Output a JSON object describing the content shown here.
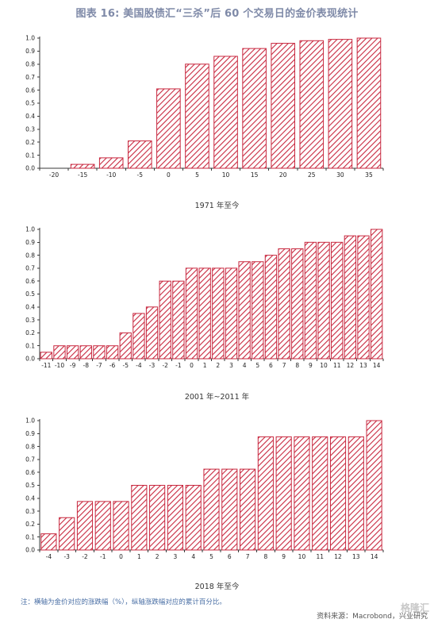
{
  "title": "图表 16: 美国股债汇“三杀”后 60 个交易日的金价表现统计",
  "note": "注：横轴为金价对应的涨跌幅（%），纵轴涨跌幅对应的累计百分比。",
  "source": "资料来源：Macrobond，兴业研究",
  "watermark": "格隆汇",
  "colors": {
    "bar": "#c8283f",
    "axis": "#3a3a3a"
  },
  "chart_data": [
    {
      "type": "bar",
      "caption": "1971 年至今",
      "ylim": [
        0,
        1.0
      ],
      "yticks": [
        "0.0",
        "0.1",
        "0.2",
        "0.3",
        "0.4",
        "0.5",
        "0.6",
        "0.7",
        "0.8",
        "0.9",
        "1.0"
      ],
      "categories": [
        "-20",
        "-15",
        "-10",
        "-5",
        "0",
        "5",
        "10",
        "15",
        "20",
        "25",
        "30",
        "35"
      ],
      "values": [
        0.0,
        0.03,
        0.08,
        0.21,
        0.61,
        0.8,
        0.86,
        0.92,
        0.96,
        0.98,
        0.99,
        1.0
      ]
    },
    {
      "type": "bar",
      "caption": "2001 年~2011 年",
      "ylim": [
        0,
        1.0
      ],
      "yticks": [
        "0.0",
        "0.1",
        "0.2",
        "0.3",
        "0.4",
        "0.5",
        "0.6",
        "0.7",
        "0.8",
        "0.9",
        "1.0"
      ],
      "categories": [
        "-11",
        "-10",
        "-9",
        "-8",
        "-7",
        "-6",
        "-5",
        "-4",
        "-3",
        "-2",
        "-1",
        "0",
        "1",
        "2",
        "3",
        "4",
        "5",
        "6",
        "7",
        "8",
        "9",
        "10",
        "11",
        "12",
        "13",
        "14"
      ],
      "values": [
        0.05,
        0.1,
        0.1,
        0.1,
        0.1,
        0.1,
        0.2,
        0.35,
        0.4,
        0.6,
        0.6,
        0.7,
        0.7,
        0.7,
        0.7,
        0.75,
        0.75,
        0.8,
        0.85,
        0.85,
        0.9,
        0.9,
        0.9,
        0.95,
        0.95,
        1.0
      ]
    },
    {
      "type": "bar",
      "caption": "2018 年至今",
      "ylim": [
        0,
        1.0
      ],
      "yticks": [
        "0.0",
        "0.1",
        "0.2",
        "0.3",
        "0.4",
        "0.5",
        "0.6",
        "0.7",
        "0.8",
        "0.9",
        "1.0"
      ],
      "categories": [
        "-4",
        "-3",
        "-2",
        "-1",
        "0",
        "1",
        "2",
        "3",
        "4",
        "5",
        "6",
        "7",
        "8",
        "9",
        "10",
        "11",
        "12",
        "13",
        "14"
      ],
      "values": [
        0.125,
        0.25,
        0.375,
        0.375,
        0.375,
        0.5,
        0.5,
        0.5,
        0.5,
        0.625,
        0.625,
        0.625,
        0.875,
        0.875,
        0.875,
        0.875,
        0.875,
        0.875,
        1.0
      ]
    }
  ]
}
